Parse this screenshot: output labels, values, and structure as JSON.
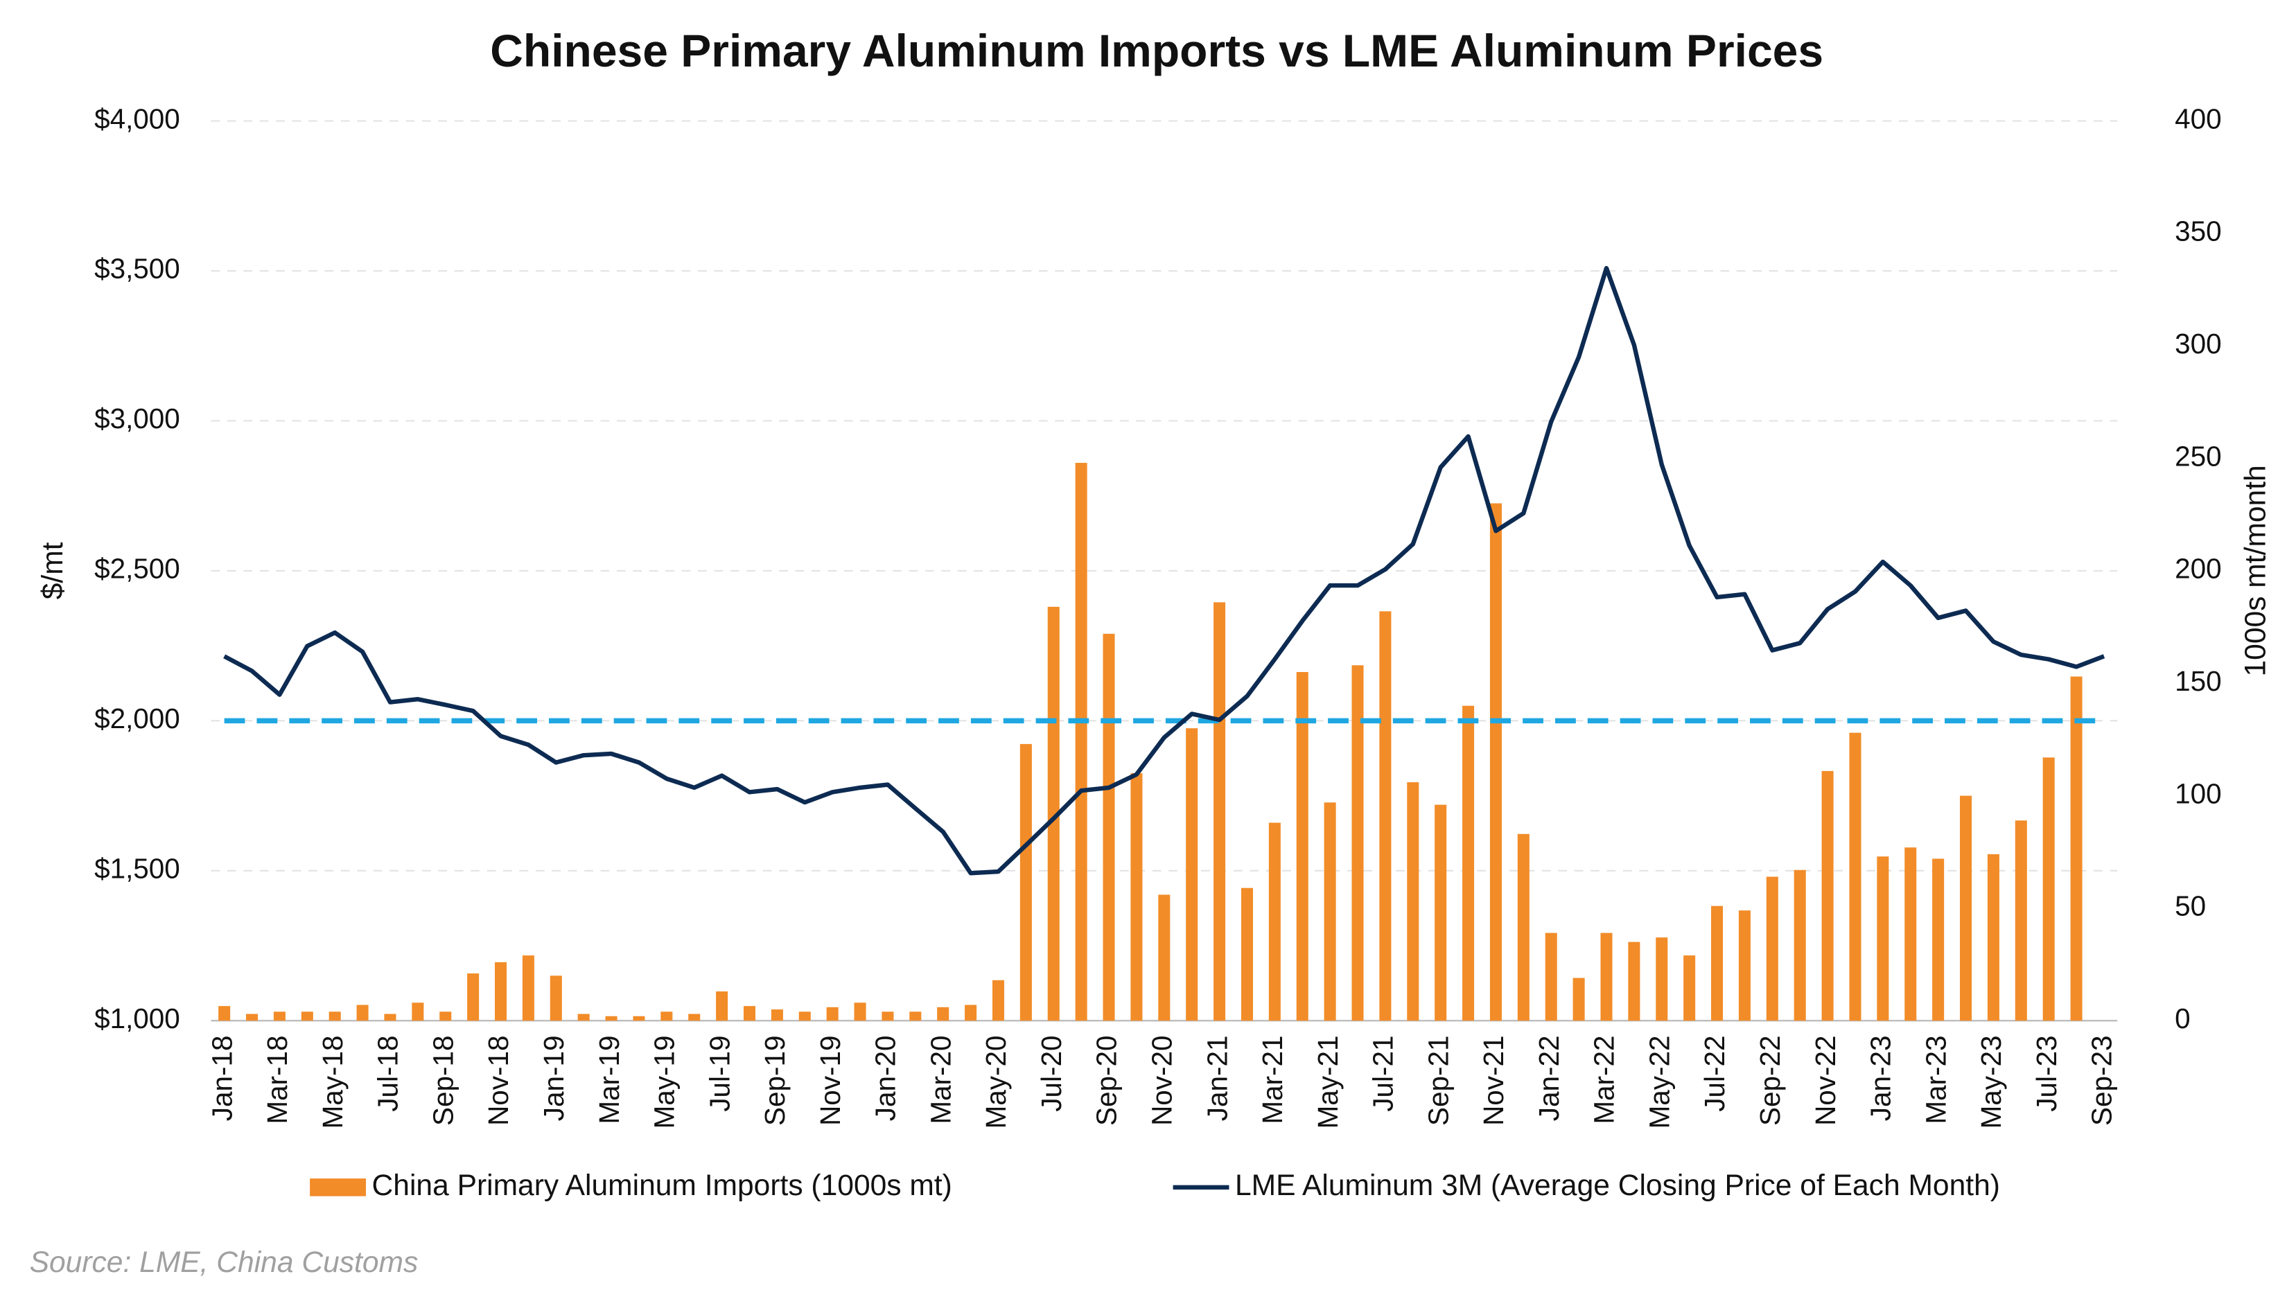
{
  "chart_data": {
    "type": "bar",
    "title": "Chinese Primary Aluminum Imports vs LME Aluminum Prices",
    "categories": [
      "Jan-18",
      null,
      "Mar-18",
      null,
      "May-18",
      null,
      "Jul-18",
      null,
      "Sep-18",
      null,
      "Nov-18",
      null,
      "Jan-19",
      null,
      "Mar-19",
      null,
      "May-19",
      null,
      "Jul-19",
      null,
      "Sep-19",
      null,
      "Nov-19",
      null,
      "Jan-20",
      null,
      "Mar-20",
      null,
      "May-20",
      null,
      "Jul-20",
      null,
      "Sep-20",
      null,
      "Nov-20",
      null,
      "Jan-21",
      null,
      "Mar-21",
      null,
      "May-21",
      null,
      "Jul-21",
      null,
      "Sep-21",
      null,
      "Nov-21",
      null,
      "Jan-22",
      null,
      "Mar-22",
      null,
      "May-22",
      null,
      "Jul-22",
      null,
      "Sep-22",
      null,
      "Nov-22",
      null,
      "Jan-23",
      null,
      "Mar-23",
      null,
      "May-23",
      null,
      "Jul-23",
      null,
      "Sep-23"
    ],
    "series": [
      {
        "name": "China Primary Aluminum Imports (1000s mt)",
        "type": "bar",
        "axis": "y2",
        "color": "#f28c28",
        "values": [
          6.5,
          3,
          4,
          4,
          4,
          7,
          3,
          8,
          4,
          21,
          26,
          29,
          20,
          3,
          2,
          2,
          4,
          3,
          13,
          6.5,
          5,
          4,
          6,
          8,
          4,
          4,
          6,
          7,
          18,
          123,
          184,
          248,
          172,
          110,
          56,
          130,
          186,
          59,
          88,
          155,
          97,
          158,
          182,
          106,
          96,
          140,
          230,
          83,
          39,
          19,
          39,
          35,
          37,
          29,
          51,
          49,
          64,
          67,
          111,
          128,
          73,
          77,
          72,
          100,
          74,
          89,
          117,
          153,
          null
        ]
      },
      {
        "name": "LME Aluminum 3M (Average Closing Price of Each Month)",
        "type": "line",
        "axis": "y",
        "color": "#0d2b52",
        "values": [
          2215,
          2166,
          2087,
          2249,
          2294,
          2230,
          2062,
          2072,
          2053,
          2033,
          1949,
          1920,
          1861,
          1885,
          1890,
          1861,
          1807,
          1777,
          1817,
          1762,
          1772,
          1728,
          1762,
          1777,
          1787,
          1708,
          1630,
          1492,
          1497,
          1585,
          1674,
          1767,
          1777,
          1821,
          1944,
          2023,
          2003,
          2082,
          2205,
          2333,
          2451,
          2451,
          2505,
          2589,
          2845,
          2948,
          2633,
          2692,
          2997,
          3213,
          3509,
          3253,
          2854,
          2584,
          2412,
          2422,
          2235,
          2259,
          2372,
          2431,
          2530,
          2451,
          2343,
          2367,
          2264,
          2220,
          2205,
          2180,
          2215
        ]
      }
    ],
    "reference_line": {
      "value": 2000,
      "color": "#1ea7e1"
    },
    "ylabel": "$/mt",
    "y2label": "1000s mt/month",
    "ylim": [
      1000,
      4000
    ],
    "yticks": [
      {
        "value": 1000,
        "label": "$1,000"
      },
      {
        "value": 1500,
        "label": "$1,500"
      },
      {
        "value": 2000,
        "label": "$2,000"
      },
      {
        "value": 2500,
        "label": "$2,500"
      },
      {
        "value": 3000,
        "label": "$3,000"
      },
      {
        "value": 3500,
        "label": "$3,500"
      },
      {
        "value": 4000,
        "label": "$4,000"
      }
    ],
    "y2lim": [
      0,
      400
    ],
    "y2ticks": [
      0,
      50,
      100,
      150,
      200,
      250,
      300,
      350,
      400
    ],
    "grid": true,
    "legend": "bottom",
    "source": "Source: LME, China Customs"
  }
}
